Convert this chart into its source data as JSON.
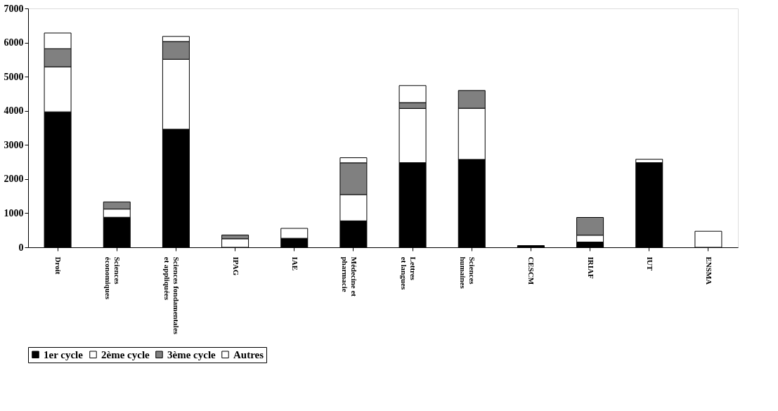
{
  "chart_data": {
    "type": "bar",
    "stacked": true,
    "categories": [
      "Droit",
      "Sciences économiques",
      "Sciences fondamentales et appliquées",
      "IPAG",
      "IAE",
      "Médecine et pharmacie",
      "Lettres et langues",
      "Sciences humaines",
      "CESCM",
      "IRIAF",
      "IUT",
      "ENSMA"
    ],
    "series": [
      {
        "name": "1er cycle",
        "color": "#000000",
        "values": [
          3970,
          880,
          3460,
          0,
          265,
          775,
          2480,
          2575,
          50,
          155,
          2480,
          0
        ]
      },
      {
        "name": "2ème cycle",
        "color": "#ffffff",
        "values": [
          1320,
          240,
          2050,
          250,
          290,
          770,
          1590,
          1500,
          0,
          200,
          0,
          0
        ]
      },
      {
        "name": "3ème cycle",
        "color": "#808080",
        "values": [
          530,
          210,
          520,
          110,
          0,
          930,
          170,
          520,
          0,
          520,
          0,
          0
        ]
      },
      {
        "name": "Autres",
        "color": "#ffffff",
        "values": [
          460,
          0,
          150,
          0,
          0,
          150,
          500,
          0,
          0,
          0,
          100,
          470
        ]
      }
    ],
    "ylim": [
      0,
      7000
    ],
    "yticks": [
      0,
      1000,
      2000,
      3000,
      4000,
      5000,
      6000,
      7000
    ],
    "grid": false,
    "legend": "bottom"
  }
}
